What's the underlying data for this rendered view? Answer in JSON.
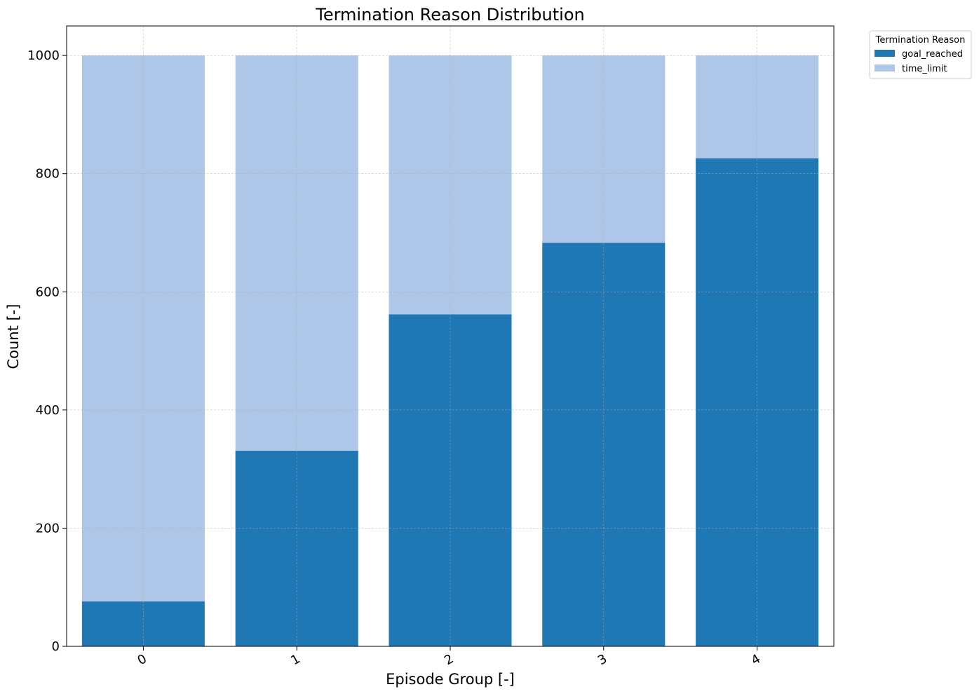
{
  "chart_data": {
    "type": "bar",
    "stacked": true,
    "title": "Termination Reason Distribution",
    "xlabel": "Episode Group [-]",
    "ylabel": "Count [-]",
    "categories": [
      "0",
      "1",
      "2",
      "3",
      "4"
    ],
    "series": [
      {
        "name": "goal_reached",
        "color": "#1f77b4",
        "values": [
          76,
          331,
          562,
          683,
          826
        ]
      },
      {
        "name": "time_limit",
        "color": "#aec7e8",
        "values": [
          924,
          669,
          438,
          317,
          174
        ]
      }
    ],
    "ylim": [
      0,
      1050
    ],
    "yticks": [
      0,
      200,
      400,
      600,
      800,
      1000
    ],
    "grid": true,
    "legend": {
      "title": "Termination Reason",
      "placement": "outside-top-right"
    }
  }
}
